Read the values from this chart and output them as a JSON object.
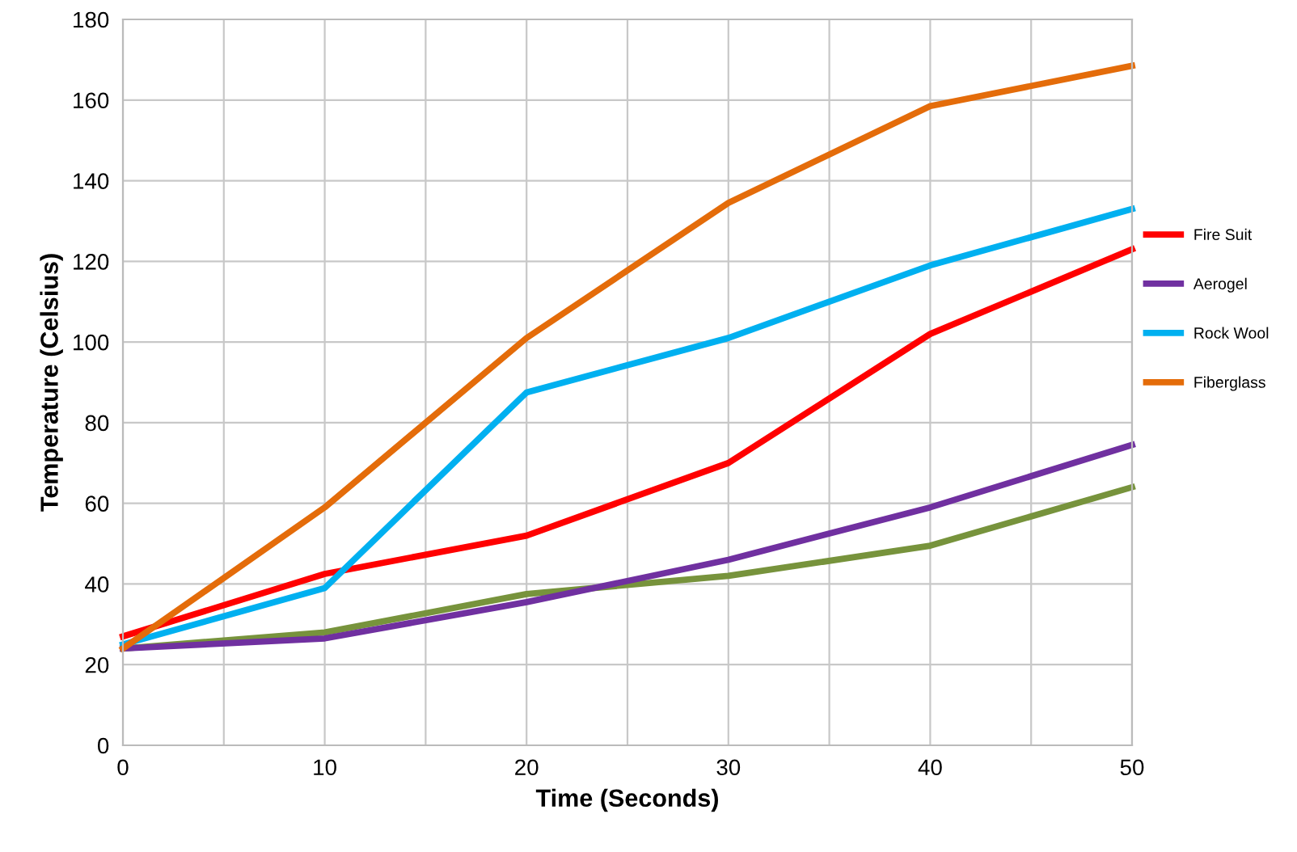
{
  "chart_data": {
    "type": "line",
    "xlabel": "Time (Seconds)",
    "ylabel": "Temperature (Celsius)",
    "x": [
      0,
      10,
      20,
      30,
      40,
      50
    ],
    "series": [
      {
        "name": "Fire Suit",
        "color": "#ff0000",
        "values": [
          27,
          42.5,
          52,
          70,
          102,
          123
        ]
      },
      {
        "color": "#77933c",
        "values": [
          24,
          28,
          37.5,
          42,
          49.5,
          64
        ]
      },
      {
        "name": "Aerogel",
        "color": "#7030a0",
        "values": [
          24,
          26.5,
          35.5,
          46,
          59,
          74.5
        ]
      },
      {
        "name": "Rock Wool",
        "color": "#00b0f0",
        "values": [
          25,
          39,
          87.5,
          101,
          119,
          133
        ]
      },
      {
        "name": "Fiberglass",
        "color": "#e46c0a",
        "values": [
          24,
          59,
          101,
          134.5,
          158.5,
          168.5
        ]
      }
    ],
    "xlim": [
      0,
      50
    ],
    "xticks": [
      0,
      {
        "value": 5,
        "label": null
      },
      10,
      {
        "value": 15,
        "label": null
      },
      20,
      {
        "value": 25,
        "label": null
      },
      30,
      {
        "value": 35,
        "label": null
      },
      40,
      {
        "value": 45,
        "label": null
      },
      50
    ],
    "ylim": [
      0,
      180
    ],
    "yticks": [
      0,
      20,
      40,
      60,
      80,
      100,
      120,
      140,
      160,
      180
    ],
    "grid": true,
    "legend": "right",
    "marker": "none",
    "line_style": "solid"
  }
}
